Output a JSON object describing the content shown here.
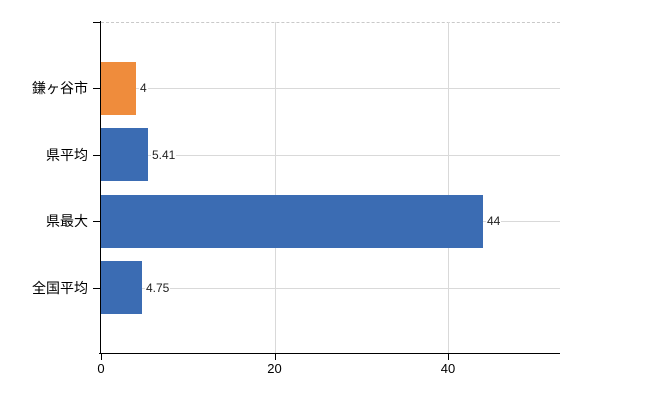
{
  "chart_data": {
    "type": "bar",
    "orientation": "horizontal",
    "title": "",
    "categories": [
      "鎌ヶ谷市",
      "県平均",
      "県最大",
      "全国平均"
    ],
    "values": [
      4,
      5.41,
      44,
      4.75
    ],
    "value_labels": [
      "4",
      "5.41",
      "44",
      "4.75"
    ],
    "bar_colors": [
      "#ef8c3c",
      "#3b6cb3",
      "#3b6cb3",
      "#3b6cb3"
    ],
    "xlim": [
      0,
      53
    ],
    "x_ticks": [
      0,
      20,
      40
    ],
    "x_tick_labels": [
      "0",
      "20",
      "40"
    ],
    "grid": true,
    "legend": "none"
  },
  "colors": {
    "highlight_bar": "#ef8c3c",
    "default_bar": "#3b6cb3",
    "grid_line": "#d9d9d9",
    "top_border": "#c9c9c9",
    "axis_line": "#000000",
    "background": "#ffffff"
  }
}
